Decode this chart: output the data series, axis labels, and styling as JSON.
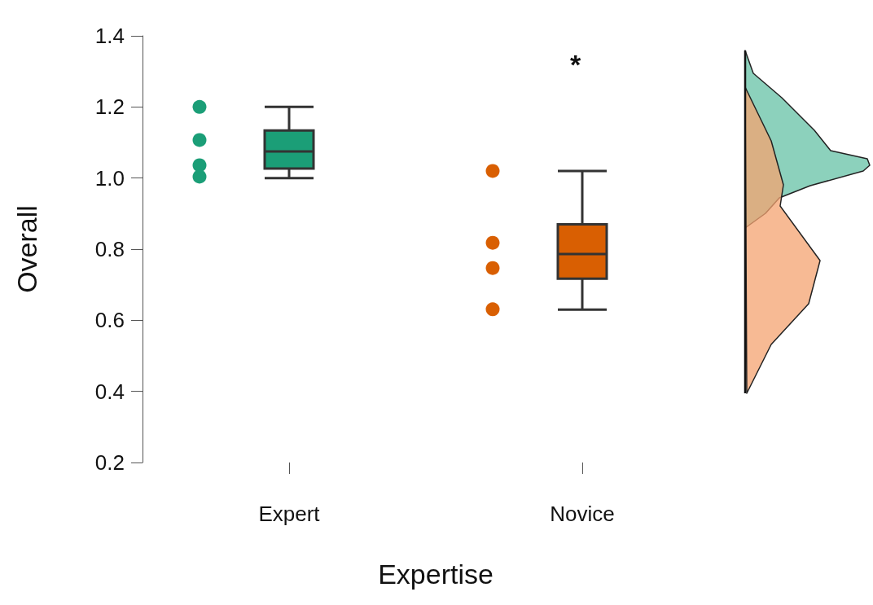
{
  "chart_data": {
    "type": "box",
    "xlabel": "Expertise",
    "ylabel": "Overall",
    "categories": [
      "Expert",
      "Novice"
    ],
    "colors": [
      "#1b9e77",
      "#d95f02"
    ],
    "boxes": [
      {
        "low": 1.0,
        "q1": 1.027,
        "median": 1.075,
        "q3": 1.134,
        "high": 1.2
      },
      {
        "low": 0.63,
        "q1": 0.717,
        "median": 0.786,
        "q3": 0.87,
        "high": 1.02
      }
    ],
    "series": [
      {
        "type": "scatter",
        "color": "#1b9e77",
        "x": [
          "Expert",
          "Expert",
          "Expert",
          "Expert"
        ],
        "values": [
          1.2,
          1.107,
          1.036,
          1.004
        ]
      },
      {
        "type": "scatter",
        "color": "#d95f02",
        "x": [
          "Novice",
          "Novice",
          "Novice",
          "Novice"
        ],
        "values": [
          1.02,
          0.818,
          0.747,
          0.631
        ]
      }
    ],
    "ylim": [
      0.2,
      1.4
    ],
    "yticks": [
      0.2,
      0.4,
      0.6,
      0.8,
      {
        "value": 1,
        "label": "1.0"
      },
      1.2,
      1.4
    ],
    "annotations": [
      "*"
    ]
  }
}
